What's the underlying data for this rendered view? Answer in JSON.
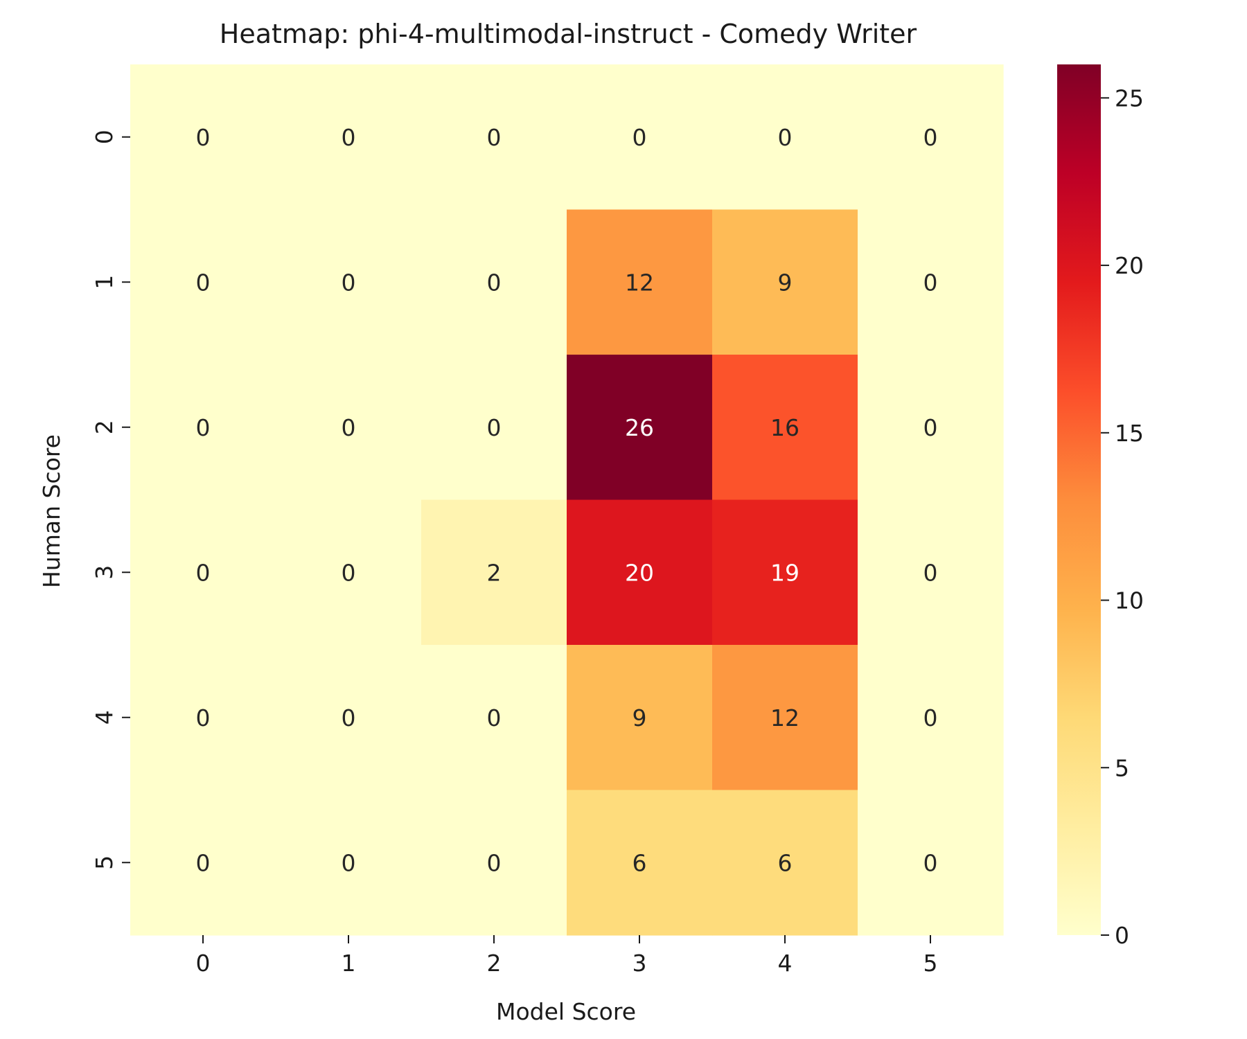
{
  "chart_data": {
    "type": "heatmap",
    "title": "Heatmap: phi-4-multimodal-instruct - Comedy Writer",
    "xlabel": "Model Score",
    "ylabel": "Human Score",
    "x_categories": [
      "0",
      "1",
      "2",
      "3",
      "4",
      "5"
    ],
    "y_categories": [
      "0",
      "1",
      "2",
      "3",
      "4",
      "5"
    ],
    "values": [
      [
        0,
        0,
        0,
        0,
        0,
        0
      ],
      [
        0,
        0,
        0,
        12,
        9,
        0
      ],
      [
        0,
        0,
        0,
        26,
        16,
        0
      ],
      [
        0,
        0,
        2,
        20,
        19,
        0
      ],
      [
        0,
        0,
        0,
        9,
        12,
        0
      ],
      [
        0,
        0,
        0,
        6,
        6,
        0
      ]
    ],
    "annotated": true,
    "colormap": "YlOrRd",
    "colorbar": {
      "range": [
        0,
        26
      ],
      "ticks": [
        "0",
        "5",
        "10",
        "15",
        "20",
        "25"
      ]
    }
  }
}
